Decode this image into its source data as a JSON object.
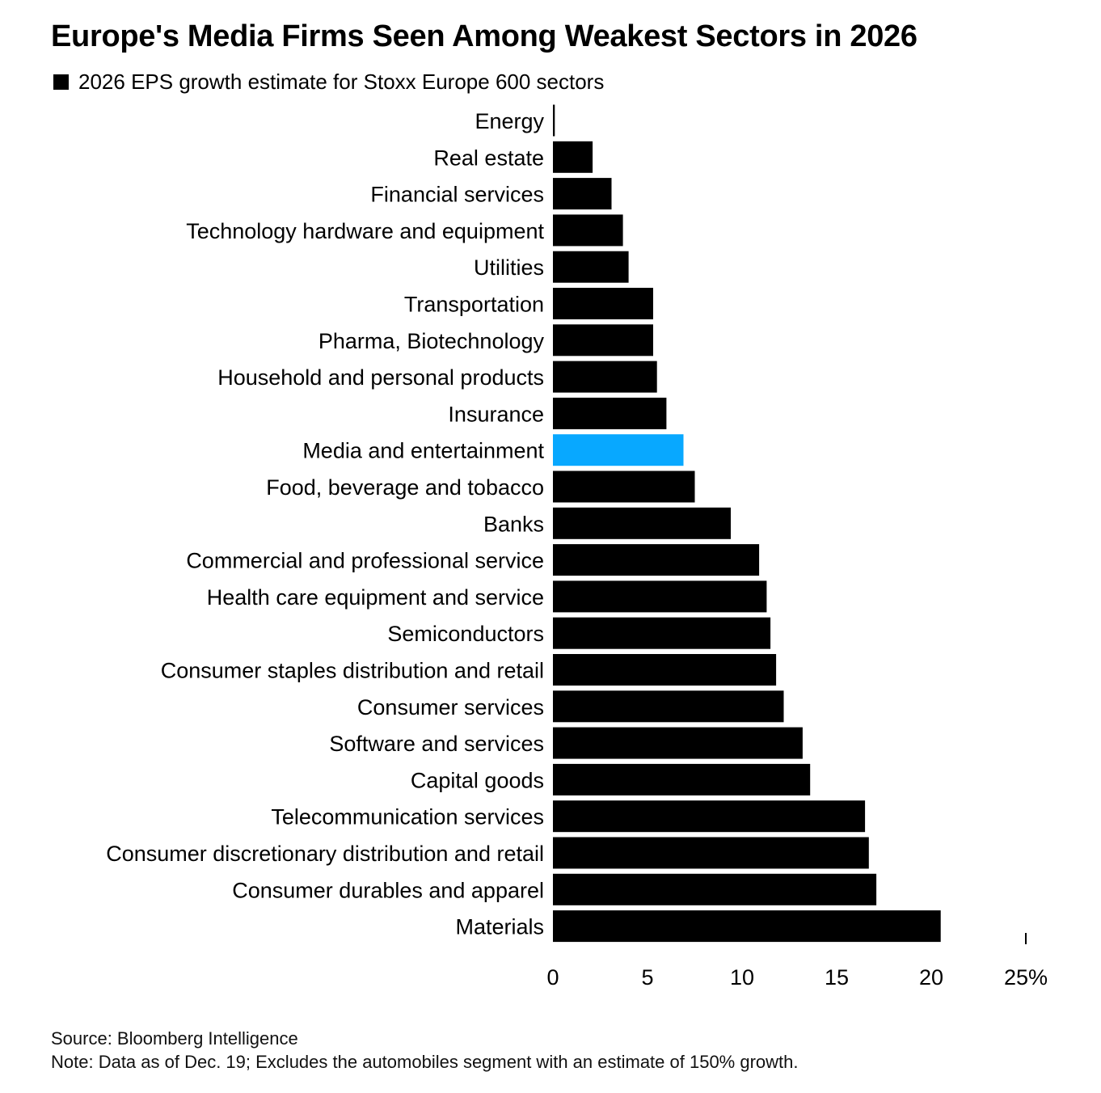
{
  "chart_data": {
    "type": "bar",
    "orientation": "horizontal",
    "title": "Europe's Media Firms Seen Among Weakest Sectors in 2026",
    "legend": [
      "2026 EPS growth estimate for Stoxx Europe 600 sectors"
    ],
    "categories": [
      "Energy",
      "Real estate",
      "Financial services",
      "Technology hardware and equipment",
      "Utilities",
      "Transportation",
      "Pharma, Biotechnology",
      "Household and personal products",
      "Insurance",
      "Media and entertainment",
      "Food, beverage and tobacco",
      "Banks",
      "Commercial and professional service",
      "Health care equipment and service",
      "Semiconductors",
      "Consumer staples distribution and retail",
      "Consumer services",
      "Software and services",
      "Capital goods",
      "Telecommunication services",
      "Consumer discretionary distribution and retail",
      "Consumer durables and apparel",
      "Materials"
    ],
    "series": [
      {
        "name": "2026 EPS growth estimate for Stoxx Europe 600 sectors",
        "values": [
          0.1,
          2.1,
          3.1,
          3.7,
          4.0,
          5.3,
          5.3,
          5.5,
          6.0,
          6.9,
          7.5,
          9.4,
          10.9,
          11.3,
          11.5,
          11.8,
          12.2,
          13.2,
          13.6,
          16.5,
          16.7,
          17.1,
          20.5
        ]
      }
    ],
    "highlight_category": "Media and entertainment",
    "colors": {
      "bar": "#000000",
      "highlight": "#08a8ff"
    },
    "xlim": [
      0,
      25
    ],
    "xticks": [
      {
        "value": 0,
        "label": "0"
      },
      {
        "value": 5,
        "label": "5"
      },
      {
        "value": 10,
        "label": "10"
      },
      {
        "value": 15,
        "label": "15"
      },
      {
        "value": 20,
        "label": "20"
      },
      {
        "value": 25,
        "label": "25%"
      }
    ],
    "grid": false,
    "legend_position": "top-left"
  },
  "footer": {
    "source": "Source: Bloomberg Intelligence",
    "note": "Note: Data as of Dec. 19; Excludes the automobiles segment with an estimate of 150% growth."
  }
}
